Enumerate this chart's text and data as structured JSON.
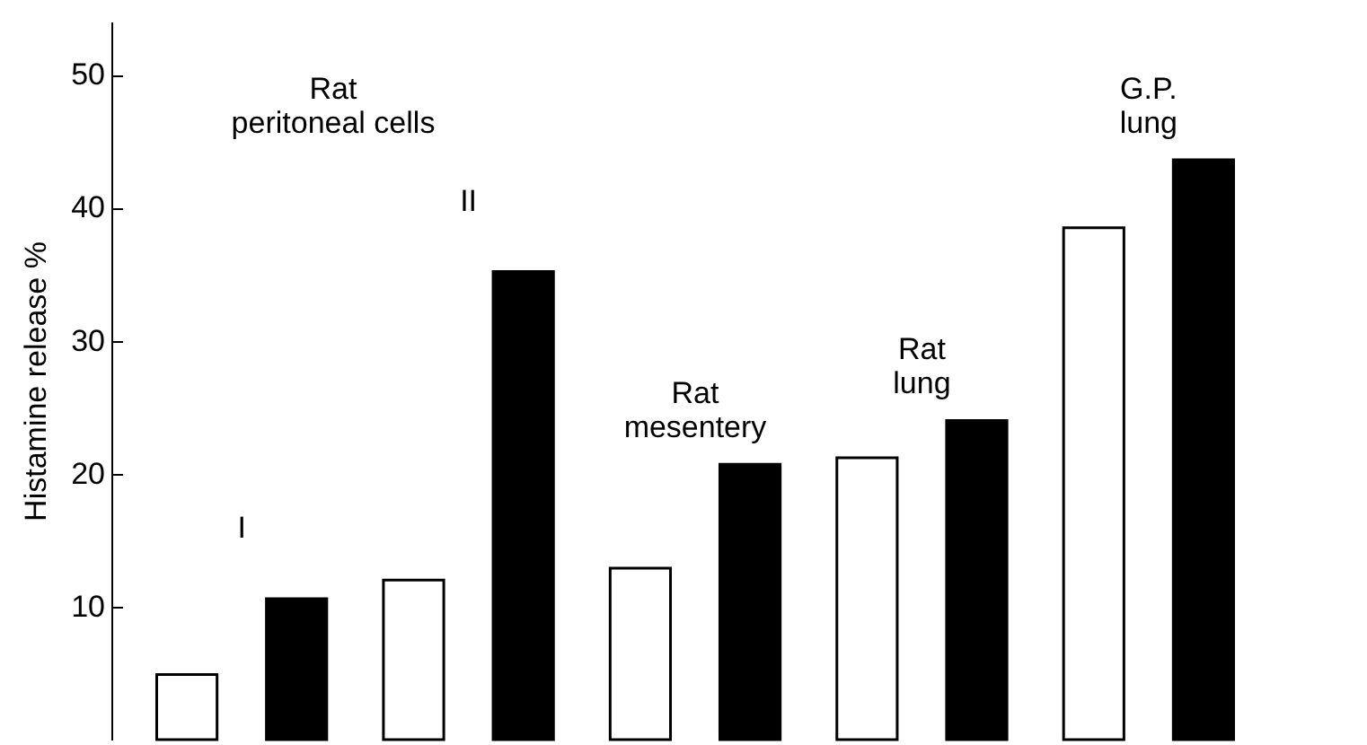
{
  "chart_data": {
    "type": "bar",
    "ylabel": "Histamine release %",
    "categories": [
      "I",
      "II",
      "Rat\nmesentery",
      "Rat\nlung",
      "G.P.\nlung"
    ],
    "series": [
      {
        "color": "#ffffff",
        "values": [
          4.9,
          12.0,
          12.9,
          21.2,
          38.5
        ]
      },
      {
        "color": "#000000",
        "values": [
          10.6,
          35.2,
          20.7,
          24.0,
          43.6
        ]
      }
    ],
    "ylim": [
      0,
      54
    ],
    "yticks": [
      10,
      20,
      30,
      40,
      50
    ],
    "grid": false,
    "annotations": [
      "Rat\nperitoneal cells"
    ]
  }
}
